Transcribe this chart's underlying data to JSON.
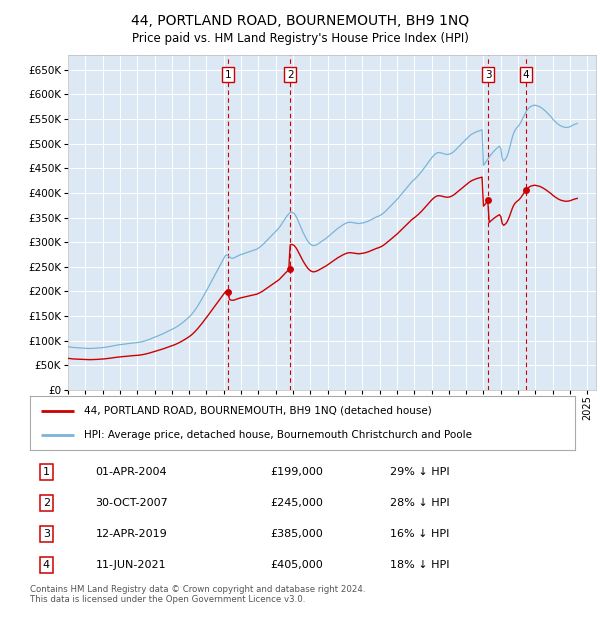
{
  "title": "44, PORTLAND ROAD, BOURNEMOUTH, BH9 1NQ",
  "subtitle": "Price paid vs. HM Land Registry's House Price Index (HPI)",
  "xlim_start": 1995.0,
  "xlim_end": 2025.5,
  "ylim": [
    0,
    680000
  ],
  "yticks": [
    0,
    50000,
    100000,
    150000,
    200000,
    250000,
    300000,
    350000,
    400000,
    450000,
    500000,
    550000,
    600000,
    650000
  ],
  "background_color": "#ffffff",
  "plot_bg_color": "#dce9f5",
  "grid_color": "#ffffff",
  "hpi_color": "#7ab4d8",
  "price_color": "#cc0000",
  "vline_color": "#cc0000",
  "annotation_color": "#cc0000",
  "legend_label_price": "44, PORTLAND ROAD, BOURNEMOUTH, BH9 1NQ (detached house)",
  "legend_label_hpi": "HPI: Average price, detached house, Bournemouth Christchurch and Poole",
  "transactions": [
    {
      "num": 1,
      "date_f": "01-APR-2004",
      "date_x": 2004.25,
      "price": 199000,
      "pct": "29% ↓ HPI"
    },
    {
      "num": 2,
      "date_f": "30-OCT-2007",
      "date_x": 2007.83,
      "price": 245000,
      "pct": "28% ↓ HPI"
    },
    {
      "num": 3,
      "date_f": "12-APR-2019",
      "date_x": 2019.28,
      "price": 385000,
      "pct": "16% ↓ HPI"
    },
    {
      "num": 4,
      "date_f": "11-JUN-2021",
      "date_x": 2021.44,
      "price": 405000,
      "pct": "18% ↓ HPI"
    }
  ],
  "footer_line1": "Contains HM Land Registry data © Crown copyright and database right 2024.",
  "footer_line2": "This data is licensed under the Open Government Licence v3.0.",
  "hpi_data_x": [
    1995.0,
    1995.083,
    1995.167,
    1995.25,
    1995.333,
    1995.417,
    1995.5,
    1995.583,
    1995.667,
    1995.75,
    1995.833,
    1995.917,
    1996.0,
    1996.083,
    1996.167,
    1996.25,
    1996.333,
    1996.417,
    1996.5,
    1996.583,
    1996.667,
    1996.75,
    1996.833,
    1996.917,
    1997.0,
    1997.083,
    1997.167,
    1997.25,
    1997.333,
    1997.417,
    1997.5,
    1997.583,
    1997.667,
    1997.75,
    1997.833,
    1997.917,
    1998.0,
    1998.083,
    1998.167,
    1998.25,
    1998.333,
    1998.417,
    1998.5,
    1998.583,
    1998.667,
    1998.75,
    1998.833,
    1998.917,
    1999.0,
    1999.083,
    1999.167,
    1999.25,
    1999.333,
    1999.417,
    1999.5,
    1999.583,
    1999.667,
    1999.75,
    1999.833,
    1999.917,
    2000.0,
    2000.083,
    2000.167,
    2000.25,
    2000.333,
    2000.417,
    2000.5,
    2000.583,
    2000.667,
    2000.75,
    2000.833,
    2000.917,
    2001.0,
    2001.083,
    2001.167,
    2001.25,
    2001.333,
    2001.417,
    2001.5,
    2001.583,
    2001.667,
    2001.75,
    2001.833,
    2001.917,
    2002.0,
    2002.083,
    2002.167,
    2002.25,
    2002.333,
    2002.417,
    2002.5,
    2002.583,
    2002.667,
    2002.75,
    2002.833,
    2002.917,
    2003.0,
    2003.083,
    2003.167,
    2003.25,
    2003.333,
    2003.417,
    2003.5,
    2003.583,
    2003.667,
    2003.75,
    2003.833,
    2003.917,
    2004.0,
    2004.083,
    2004.167,
    2004.25,
    2004.333,
    2004.417,
    2004.5,
    2004.583,
    2004.667,
    2004.75,
    2004.833,
    2004.917,
    2005.0,
    2005.083,
    2005.167,
    2005.25,
    2005.333,
    2005.417,
    2005.5,
    2005.583,
    2005.667,
    2005.75,
    2005.833,
    2005.917,
    2006.0,
    2006.083,
    2006.167,
    2006.25,
    2006.333,
    2006.417,
    2006.5,
    2006.583,
    2006.667,
    2006.75,
    2006.833,
    2006.917,
    2007.0,
    2007.083,
    2007.167,
    2007.25,
    2007.333,
    2007.417,
    2007.5,
    2007.583,
    2007.667,
    2007.75,
    2007.833,
    2007.917,
    2008.0,
    2008.083,
    2008.167,
    2008.25,
    2008.333,
    2008.417,
    2008.5,
    2008.583,
    2008.667,
    2008.75,
    2008.833,
    2008.917,
    2009.0,
    2009.083,
    2009.167,
    2009.25,
    2009.333,
    2009.417,
    2009.5,
    2009.583,
    2009.667,
    2009.75,
    2009.833,
    2009.917,
    2010.0,
    2010.083,
    2010.167,
    2010.25,
    2010.333,
    2010.417,
    2010.5,
    2010.583,
    2010.667,
    2010.75,
    2010.833,
    2010.917,
    2011.0,
    2011.083,
    2011.167,
    2011.25,
    2011.333,
    2011.417,
    2011.5,
    2011.583,
    2011.667,
    2011.75,
    2011.833,
    2011.917,
    2012.0,
    2012.083,
    2012.167,
    2012.25,
    2012.333,
    2012.417,
    2012.5,
    2012.583,
    2012.667,
    2012.75,
    2012.833,
    2012.917,
    2013.0,
    2013.083,
    2013.167,
    2013.25,
    2013.333,
    2013.417,
    2013.5,
    2013.583,
    2013.667,
    2013.75,
    2013.833,
    2013.917,
    2014.0,
    2014.083,
    2014.167,
    2014.25,
    2014.333,
    2014.417,
    2014.5,
    2014.583,
    2014.667,
    2014.75,
    2014.833,
    2014.917,
    2015.0,
    2015.083,
    2015.167,
    2015.25,
    2015.333,
    2015.417,
    2015.5,
    2015.583,
    2015.667,
    2015.75,
    2015.833,
    2015.917,
    2016.0,
    2016.083,
    2016.167,
    2016.25,
    2016.333,
    2016.417,
    2016.5,
    2016.583,
    2016.667,
    2016.75,
    2016.833,
    2016.917,
    2017.0,
    2017.083,
    2017.167,
    2017.25,
    2017.333,
    2017.417,
    2017.5,
    2017.583,
    2017.667,
    2017.75,
    2017.833,
    2017.917,
    2018.0,
    2018.083,
    2018.167,
    2018.25,
    2018.333,
    2018.417,
    2018.5,
    2018.583,
    2018.667,
    2018.75,
    2018.833,
    2018.917,
    2019.0,
    2019.083,
    2019.167,
    2019.25,
    2019.333,
    2019.417,
    2019.5,
    2019.583,
    2019.667,
    2019.75,
    2019.833,
    2019.917,
    2020.0,
    2020.083,
    2020.167,
    2020.25,
    2020.333,
    2020.417,
    2020.5,
    2020.583,
    2020.667,
    2020.75,
    2020.833,
    2020.917,
    2021.0,
    2021.083,
    2021.167,
    2021.25,
    2021.333,
    2021.417,
    2021.5,
    2021.583,
    2021.667,
    2021.75,
    2021.833,
    2021.917,
    2022.0,
    2022.083,
    2022.167,
    2022.25,
    2022.333,
    2022.417,
    2022.5,
    2022.583,
    2022.667,
    2022.75,
    2022.833,
    2022.917,
    2023.0,
    2023.083,
    2023.167,
    2023.25,
    2023.333,
    2023.417,
    2023.5,
    2023.583,
    2023.667,
    2023.75,
    2023.833,
    2023.917,
    2024.0,
    2024.083,
    2024.167,
    2024.25,
    2024.333,
    2024.417
  ],
  "hpi_data_y": [
    88000,
    87500,
    87000,
    86500,
    86200,
    86000,
    85800,
    85500,
    85200,
    85000,
    84800,
    84600,
    84500,
    84400,
    84300,
    84300,
    84400,
    84500,
    84700,
    84900,
    85100,
    85300,
    85500,
    85700,
    86000,
    86400,
    86800,
    87300,
    87800,
    88300,
    88900,
    89500,
    90000,
    90600,
    91100,
    91600,
    92000,
    92400,
    92800,
    93200,
    93600,
    94000,
    94400,
    94800,
    95200,
    95500,
    95800,
    96000,
    96300,
    96700,
    97200,
    97800,
    98500,
    99300,
    100200,
    101200,
    102300,
    103400,
    104600,
    105700,
    106800,
    108000,
    109200,
    110400,
    111700,
    113000,
    114400,
    115800,
    117200,
    118600,
    120000,
    121400,
    122800,
    124300,
    125900,
    127600,
    129500,
    131500,
    133600,
    135800,
    138100,
    140500,
    143000,
    145500,
    148200,
    151200,
    154500,
    158200,
    162200,
    166500,
    171000,
    175800,
    180700,
    185800,
    191000,
    196200,
    201500,
    207000,
    212500,
    218000,
    223500,
    229000,
    234500,
    240000,
    245500,
    251000,
    256500,
    262000,
    267400,
    272500,
    274000,
    272500,
    270000,
    268000,
    267500,
    268000,
    269500,
    271000,
    272500,
    274000,
    275000,
    276000,
    277000,
    278000,
    279000,
    280000,
    281000,
    282000,
    283000,
    284000,
    285000,
    286000,
    288000,
    290000,
    292500,
    295000,
    298000,
    301000,
    304000,
    307000,
    310000,
    313000,
    316000,
    319000,
    322000,
    325000,
    328000,
    332000,
    336500,
    341000,
    345500,
    350000,
    354000,
    357500,
    360000,
    361000,
    360000,
    357500,
    353000,
    347000,
    340000,
    333000,
    326000,
    319500,
    313500,
    308000,
    303000,
    299000,
    296000,
    294000,
    293000,
    293500,
    294500,
    296000,
    298000,
    300000,
    302000,
    304000,
    306000,
    308000,
    310500,
    313000,
    315500,
    318000,
    320500,
    323000,
    325500,
    328000,
    330000,
    332000,
    334000,
    336000,
    337500,
    339000,
    340000,
    340500,
    340500,
    340000,
    339500,
    339000,
    338500,
    338000,
    338000,
    338500,
    339000,
    339500,
    340500,
    341500,
    342500,
    344000,
    345500,
    347000,
    348500,
    350000,
    351500,
    352500,
    354000,
    355500,
    357500,
    360000,
    362500,
    365500,
    368500,
    371500,
    374500,
    377500,
    380500,
    383500,
    386500,
    390000,
    393500,
    397000,
    400500,
    404000,
    407500,
    411000,
    414500,
    418000,
    421500,
    424500,
    427000,
    430000,
    433000,
    436000,
    439500,
    443000,
    447000,
    451000,
    455000,
    459000,
    463000,
    467000,
    471000,
    474500,
    477500,
    480000,
    481500,
    482000,
    481500,
    481000,
    480000,
    479000,
    478500,
    478000,
    478500,
    479500,
    481000,
    483000,
    485500,
    488500,
    491500,
    494500,
    497500,
    500500,
    503500,
    506500,
    509500,
    512500,
    515000,
    517500,
    519500,
    521000,
    522500,
    524000,
    525000,
    526000,
    527000,
    528000,
    456000,
    460000,
    464500,
    469000,
    473000,
    477000,
    480500,
    484000,
    487000,
    490000,
    492500,
    495000,
    490000,
    470000,
    465000,
    468000,
    472000,
    480000,
    490000,
    501000,
    513000,
    522000,
    528000,
    532000,
    535000,
    539000,
    544000,
    550000,
    556000,
    562000,
    567000,
    571000,
    574000,
    576000,
    577000,
    578000,
    578000,
    577000,
    576000,
    575000,
    573000,
    571000,
    568500,
    566000,
    563000,
    560000,
    557000,
    554000,
    550000,
    547000,
    544000,
    541500,
    539000,
    537000,
    535500,
    534500,
    533500,
    533000,
    533000,
    533500,
    534500,
    536000,
    537500,
    539000,
    540000,
    541000
  ]
}
